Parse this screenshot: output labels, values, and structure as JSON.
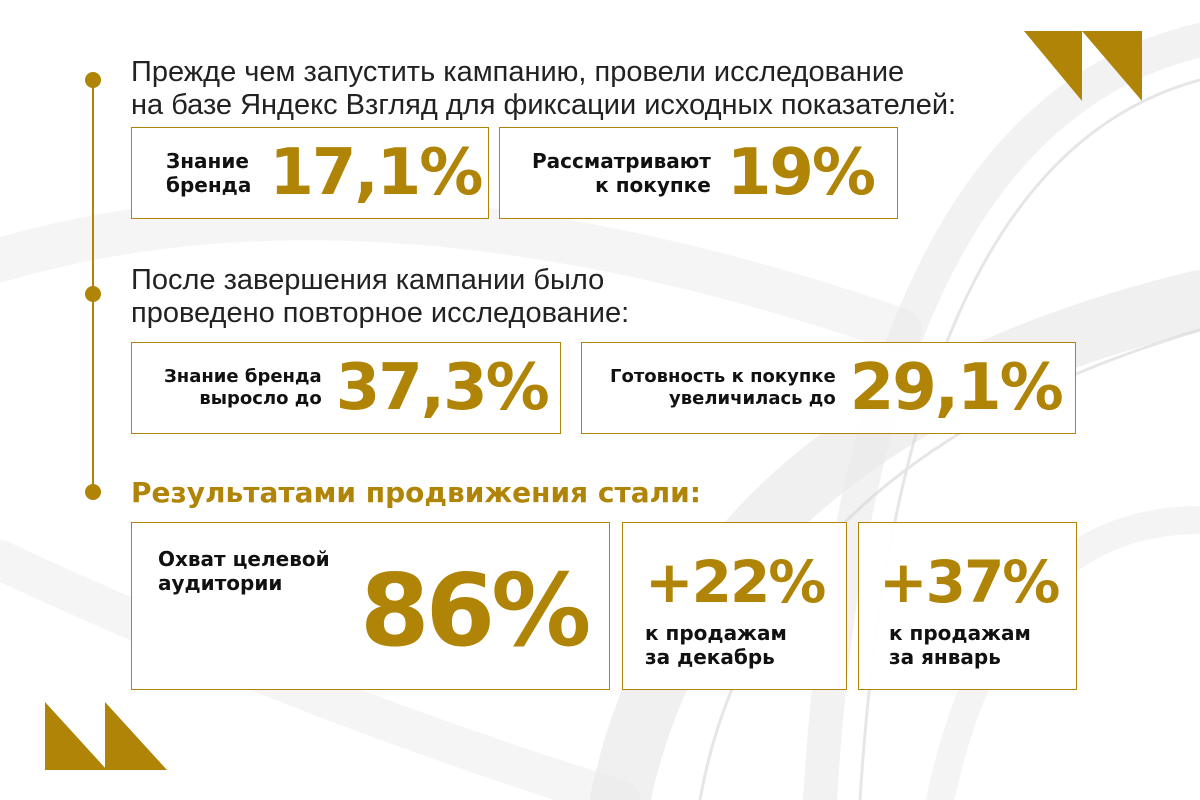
{
  "colors": {
    "accent": "#b08406",
    "text": "#1a1a1a",
    "background": "#ffffff"
  },
  "icons": {
    "corner_top": "double-chevron-corner-icon",
    "corner_bottom": "double-chevron-corner-icon"
  },
  "section1": {
    "heading_line1": "Прежде чем запустить кампанию, провели исследование",
    "heading_line2": "на базе Яндекс Взгляд для фиксации исходных показателей:",
    "awareness": {
      "label": "Знание\nбренда",
      "value": "17,1%"
    },
    "consideration": {
      "label": "Рассматривают\nк покупке",
      "value": "19%"
    }
  },
  "section2": {
    "heading_line1": "После завершения кампании было",
    "heading_line2": "проведено повторное исследование:",
    "awareness": {
      "label": "Знание бренда\nвыросло до",
      "value": "37,3%"
    },
    "readiness": {
      "label": "Готовность к покупке\nувеличилась до",
      "value": "29,1%"
    }
  },
  "section3": {
    "heading": "Результатами продвижения стали:",
    "reach": {
      "label": "Охват целевой\nаудитории",
      "value": "86%"
    },
    "december": {
      "value": "+22%",
      "label": "к продажам\nза декабрь"
    },
    "january": {
      "value": "+37%",
      "label": "к продажам\nза январь"
    }
  }
}
